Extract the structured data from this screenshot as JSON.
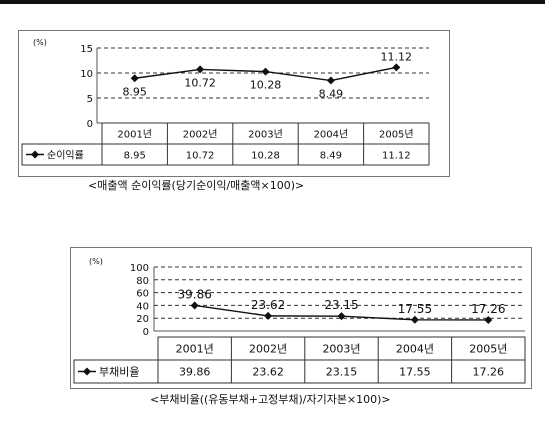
{
  "chart_data": [
    {
      "type": "line",
      "title": "",
      "unit": "(%)",
      "categories": [
        "2001년",
        "2002년",
        "2003년",
        "2004년",
        "2005년"
      ],
      "series": [
        {
          "name": "순이익률",
          "values": [
            8.95,
            10.72,
            10.28,
            8.49,
            11.12
          ]
        }
      ],
      "value_labels": [
        "8.95",
        "10.72",
        "10.28",
        "8.49",
        "11.12"
      ],
      "yticks": [
        "15",
        "10",
        "5",
        "0"
      ],
      "ylim": [
        0,
        15
      ],
      "grid": "dashed horizontal",
      "caption": "<매출액 순이익률(당기순이익/매출액×100)>"
    },
    {
      "type": "line",
      "title": "",
      "unit": "(%)",
      "categories": [
        "2001년",
        "2002년",
        "2003년",
        "2004년",
        "2005년"
      ],
      "series": [
        {
          "name": "부채비율",
          "values": [
            39.86,
            23.62,
            23.15,
            17.55,
            17.26
          ]
        }
      ],
      "value_labels": [
        "39.86",
        "23.62",
        "23.15",
        "17.55",
        "17.26"
      ],
      "yticks": [
        "100",
        "80",
        "60",
        "40",
        "20",
        "0"
      ],
      "ylim": [
        0,
        100
      ],
      "grid": "dashed horizontal",
      "caption": "<부채비율((유동부채+고정부채)/자기자본×100)>"
    }
  ],
  "colors": {
    "line": "#111111",
    "grid": "#333333",
    "border": "#777777"
  }
}
